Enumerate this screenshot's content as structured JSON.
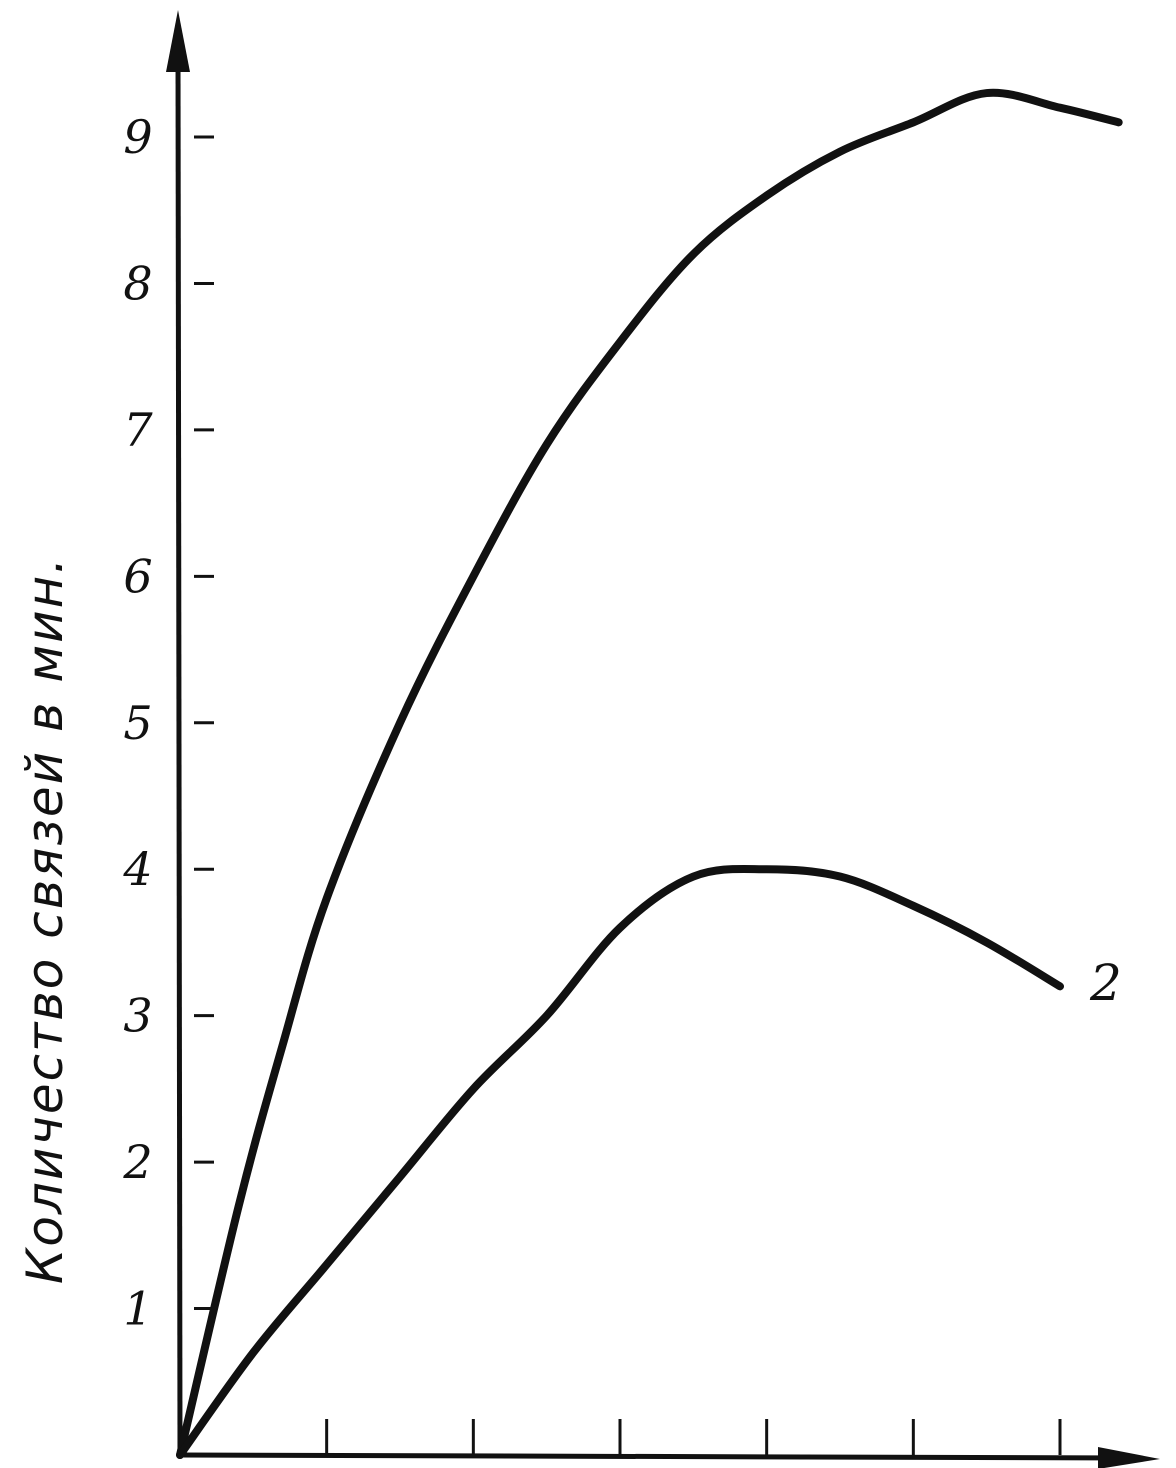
{
  "chart_data": {
    "type": "line",
    "ylabel": "Количество связей в мин.",
    "xlabel": "",
    "ylim": [
      0,
      9.9
    ],
    "xlim": [
      0,
      6.5
    ],
    "y_ticks": [
      1,
      2,
      3,
      4,
      5,
      6,
      7,
      8,
      9
    ],
    "y_tick_labels": [
      "1",
      "2",
      "3",
      "4",
      "5",
      "6",
      "7",
      "8",
      "9"
    ],
    "x_ticks": [
      1,
      2,
      3,
      4,
      5,
      6
    ],
    "grid": false,
    "series": [
      {
        "name": "",
        "color": "#111111",
        "x": [
          0,
          0.4,
          0.7,
          1.0,
          1.5,
          2.0,
          2.5,
          3.0,
          3.5,
          4.0,
          4.5,
          5.0,
          5.5,
          6.0,
          6.4
        ],
        "y": [
          0,
          1.7,
          2.8,
          3.8,
          5.0,
          6.0,
          6.9,
          7.6,
          8.2,
          8.6,
          8.9,
          9.1,
          9.3,
          9.2,
          9.1
        ]
      },
      {
        "name": "2",
        "color": "#111111",
        "x": [
          0,
          0.5,
          1.0,
          1.5,
          2.0,
          2.5,
          3.0,
          3.5,
          4.0,
          4.5,
          5.0,
          5.5,
          6.0
        ],
        "y": [
          0,
          0.7,
          1.3,
          1.9,
          2.5,
          3.0,
          3.6,
          3.95,
          4.0,
          3.95,
          3.75,
          3.5,
          3.2
        ]
      }
    ]
  }
}
